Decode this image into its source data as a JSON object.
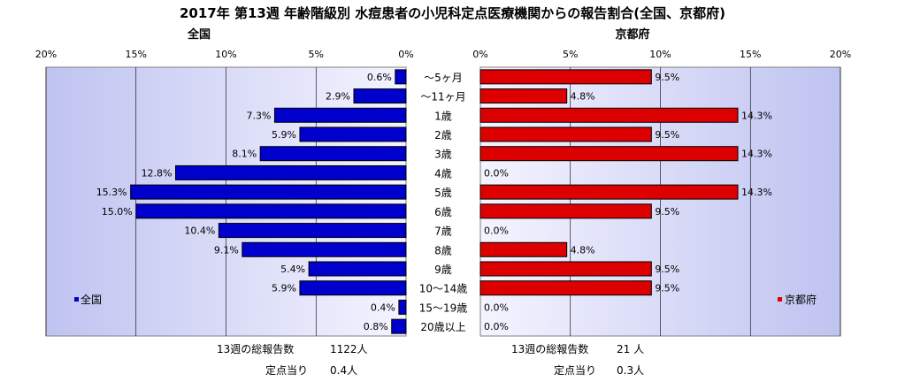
{
  "title": "2017年 第13週 年齢階級別 水痘患者の小児科定点医療機関からの報告割合(全国、京都府)",
  "chart_data": {
    "type": "bar",
    "orientation": "horizontal",
    "layout": "back-to-back",
    "categories": [
      "～5ヶ月",
      "～11ヶ月",
      "1歳",
      "2歳",
      "3歳",
      "4歳",
      "5歳",
      "6歳",
      "7歳",
      "8歳",
      "9歳",
      "10～14歳",
      "15～19歳",
      "20歳以上"
    ],
    "series": [
      {
        "name": "全国",
        "color": "#0000cc",
        "values": [
          0.6,
          2.9,
          7.3,
          5.9,
          8.1,
          12.8,
          15.3,
          15.0,
          10.4,
          9.1,
          5.4,
          5.9,
          0.4,
          0.8
        ],
        "value_labels": [
          "0.6%",
          "2.9%",
          "7.3%",
          "5.9%",
          "8.1%",
          "12.8%",
          "15.3%",
          "15.0%",
          "10.4%",
          "9.1%",
          "5.4%",
          "5.9%",
          "0.4%",
          "0.8%"
        ],
        "xlim": [
          0,
          20
        ],
        "ticks": [
          "20%",
          "15%",
          "10%",
          "5%",
          "0%"
        ],
        "legend": "全国",
        "legend_position": "bottom-left"
      },
      {
        "name": "京都府",
        "color": "#dd0000",
        "values": [
          9.5,
          4.8,
          14.3,
          9.5,
          14.3,
          0.0,
          14.3,
          9.5,
          0.0,
          4.8,
          9.5,
          9.5,
          0.0,
          0.0
        ],
        "value_labels": [
          "9.5%",
          "4.8%",
          "14.3%",
          "9.5%",
          "14.3%",
          "0.0%",
          "14.3%",
          "9.5%",
          "0.0%",
          "4.8%",
          "9.5%",
          "9.5%",
          "0.0%",
          "0.0%"
        ],
        "xlim": [
          0,
          20
        ],
        "ticks": [
          "0%",
          "5%",
          "10%",
          "15%",
          "20%"
        ],
        "legend": "京都府",
        "legend_position": "bottom-right"
      }
    ],
    "grid": true,
    "plot_background": "#cdcdf5"
  },
  "footer": {
    "national_total_label": "13週の総報告数",
    "national_total_value": "1122人",
    "national_per_label": "定点当り",
    "national_per_value": "0.4人",
    "kyoto_total_label": "13週の総報告数",
    "kyoto_total_value": "21 人",
    "kyoto_per_label": "定点当り",
    "kyoto_per_value": "0.3人"
  }
}
